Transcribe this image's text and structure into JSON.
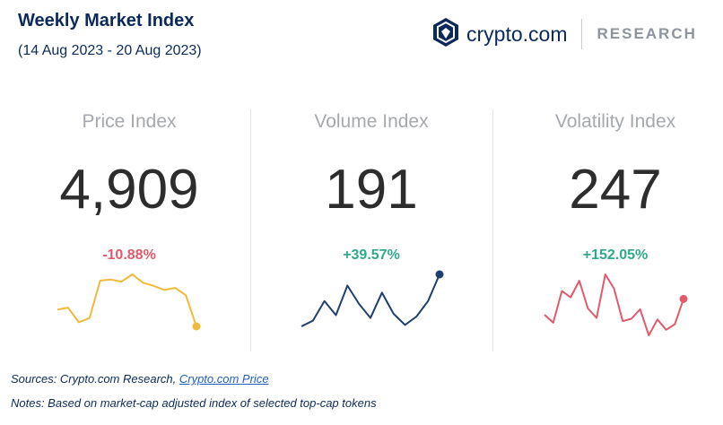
{
  "header": {
    "title": "Weekly Market Index",
    "date_range": "(14 Aug 2023 - 20 Aug 2023)"
  },
  "brand": {
    "logo_icon": "crypto-com-lion-shield-icon",
    "name": "crypto.com",
    "division": "RESEARCH"
  },
  "colors": {
    "navy": "#0b2a5b",
    "negative": "#e05a6a",
    "positive": "#2fa98c",
    "price_line": "#f0b93a",
    "volume_line": "#1f3f70",
    "volatility_line": "#e05a6a"
  },
  "chart_data": [
    {
      "type": "line",
      "title": "Price Index",
      "value": "4,909",
      "change": "-10.88%",
      "values": [
        100.4,
        100.6,
        99.2,
        99.6,
        103.2,
        103.3,
        103.1,
        103.8,
        103.0,
        102.7,
        102.3,
        102.5,
        101.8,
        98.8
      ]
    },
    {
      "type": "line",
      "title": "Volume Index",
      "value": "191",
      "change": "+39.57%",
      "values": [
        6,
        10,
        24,
        14,
        35,
        22,
        12,
        30,
        15,
        7,
        13,
        24,
        43
      ]
    },
    {
      "type": "line",
      "title": "Volatility Index",
      "value": "247",
      "change": "+152.05%",
      "values": [
        40,
        30,
        70,
        62,
        83,
        48,
        36,
        91,
        73,
        32,
        35,
        47,
        14,
        34,
        21,
        28,
        60
      ]
    }
  ],
  "footer": {
    "sources_prefix": "Sources: Crypto.com Research, ",
    "sources_link": "Crypto.com Price",
    "notes": "Notes: Based on market-cap adjusted index of selected top-cap tokens"
  }
}
